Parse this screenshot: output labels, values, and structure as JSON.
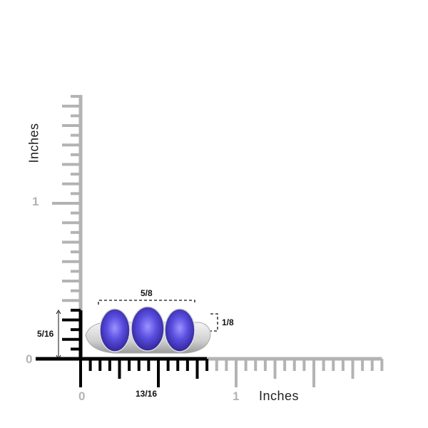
{
  "rulers": {
    "unit_label_vertical": "Inches",
    "unit_label_horizontal": "Inches",
    "tick_zero_vertical": "0",
    "tick_one_vertical": "1",
    "tick_zero_horizontal": "0",
    "tick_one_horizontal": "1",
    "highlight_color": "#000000",
    "ruler_color": "#b3b3b3",
    "width_highlight_sixteenths": 13,
    "height_highlight_sixteenths": 5
  },
  "dimensions": {
    "width": "13/16",
    "height": "5/16",
    "stone_span": "5/8",
    "stone_height": "1/8"
  },
  "product": {
    "image": "three-stone-oval-tanzanite-ring",
    "gem_color": "#4b3fc4"
  }
}
